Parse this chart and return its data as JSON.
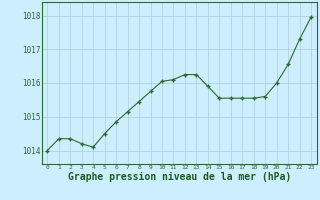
{
  "x": [
    0,
    1,
    2,
    3,
    4,
    5,
    6,
    7,
    8,
    9,
    10,
    11,
    12,
    13,
    14,
    15,
    16,
    17,
    18,
    19,
    20,
    21,
    22,
    23
  ],
  "y": [
    1014.0,
    1014.35,
    1014.35,
    1014.2,
    1014.1,
    1014.5,
    1014.85,
    1015.15,
    1015.45,
    1015.75,
    1016.05,
    1016.1,
    1016.25,
    1016.25,
    1015.9,
    1015.55,
    1015.55,
    1015.55,
    1015.55,
    1015.6,
    1016.0,
    1016.55,
    1017.3,
    1017.95
  ],
  "line_color": "#2d6a2d",
  "marker_color": "#2d6a2d",
  "bg_color": "#cceeff",
  "grid_color": "#aaccdd",
  "xlabel": "Graphe pression niveau de la mer (hPa)",
  "xlabel_color": "#1a5c1a",
  "yticks": [
    1014,
    1015,
    1016,
    1017,
    1018
  ],
  "xtick_labels": [
    "0",
    "1",
    "2",
    "3",
    "4",
    "5",
    "6",
    "7",
    "8",
    "9",
    "10",
    "11",
    "12",
    "13",
    "14",
    "15",
    "16",
    "17",
    "18",
    "19",
    "20",
    "21",
    "22",
    "23"
  ],
  "ylim": [
    1013.6,
    1018.4
  ],
  "xlim": [
    -0.5,
    23.5
  ],
  "tick_color": "#2d6a2d",
  "axis_color": "#2d6a2d",
  "xlabel_fontsize": 7,
  "ytick_fontsize": 5.5,
  "xtick_fontsize": 4.5
}
